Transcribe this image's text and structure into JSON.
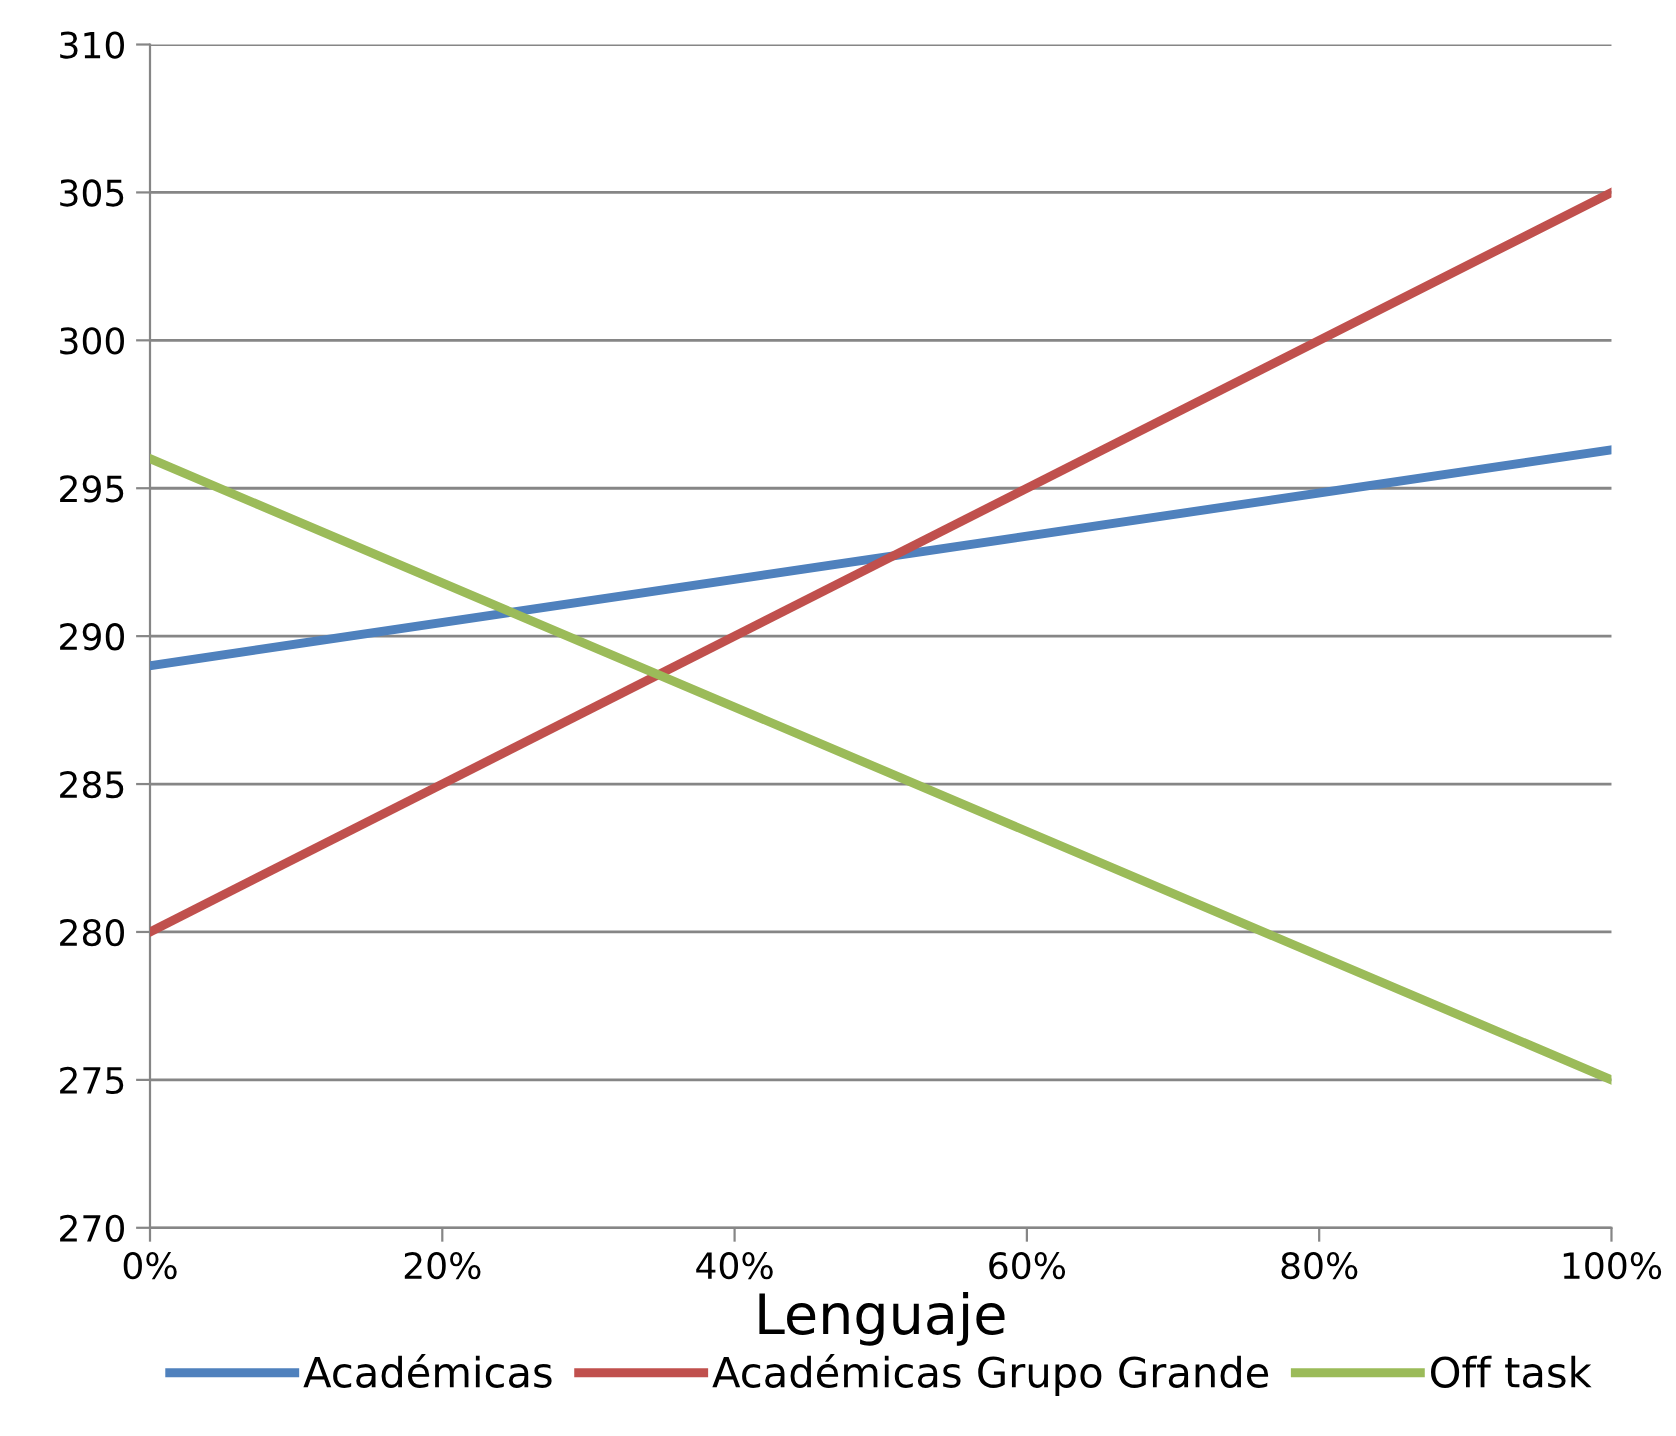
{
  "chart_data": {
    "type": "line",
    "xlabel": "Lenguaje",
    "x": [
      0,
      100
    ],
    "series": [
      {
        "name": "Académicas",
        "color": "#4f81bd",
        "values": [
          289,
          296.3
        ]
      },
      {
        "name": "Académicas Grupo Grande",
        "color": "#c0504d",
        "values": [
          280,
          305
        ]
      },
      {
        "name": "Off task",
        "color": "#9bbb59",
        "values": [
          296,
          275
        ]
      }
    ],
    "xlim": [
      0,
      100
    ],
    "xticks": [
      {
        "value": 0,
        "label": "0%"
      },
      {
        "value": 20,
        "label": "20%"
      },
      {
        "value": 40,
        "label": "40%"
      },
      {
        "value": 60,
        "label": "60%"
      },
      {
        "value": 80,
        "label": "80%"
      },
      {
        "value": 100,
        "label": "100%"
      }
    ],
    "ylim": [
      270,
      310
    ],
    "yticks": [
      270,
      275,
      280,
      285,
      290,
      295,
      300,
      305,
      310
    ],
    "grid": "y",
    "legend": "bottom",
    "marker": "none",
    "line_style": "solid"
  }
}
